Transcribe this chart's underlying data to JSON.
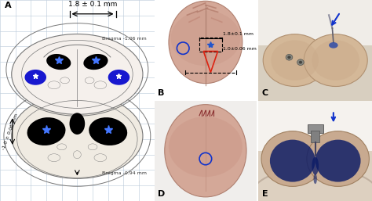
{
  "figure_width": 4.74,
  "figure_height": 2.57,
  "dpi": 100,
  "bg_color": "#ffffff",
  "panel_A": {
    "label": "A",
    "title_text": "1.8 ± 0.1 mm",
    "bregma_top": "Bregma -1.06 mm",
    "bregma_bot": "Bregma -0.94 mm",
    "depth_label": "-1.0 ± 0.06 mm",
    "grid_color": "#b8c8d8",
    "outline_color": "#777777",
    "blue_fill": "#0000cc",
    "star_color": "#4477ff"
  },
  "blue_arrow": "#1133cc",
  "red_line": "#dd2211",
  "circle_color": "#1133cc"
}
